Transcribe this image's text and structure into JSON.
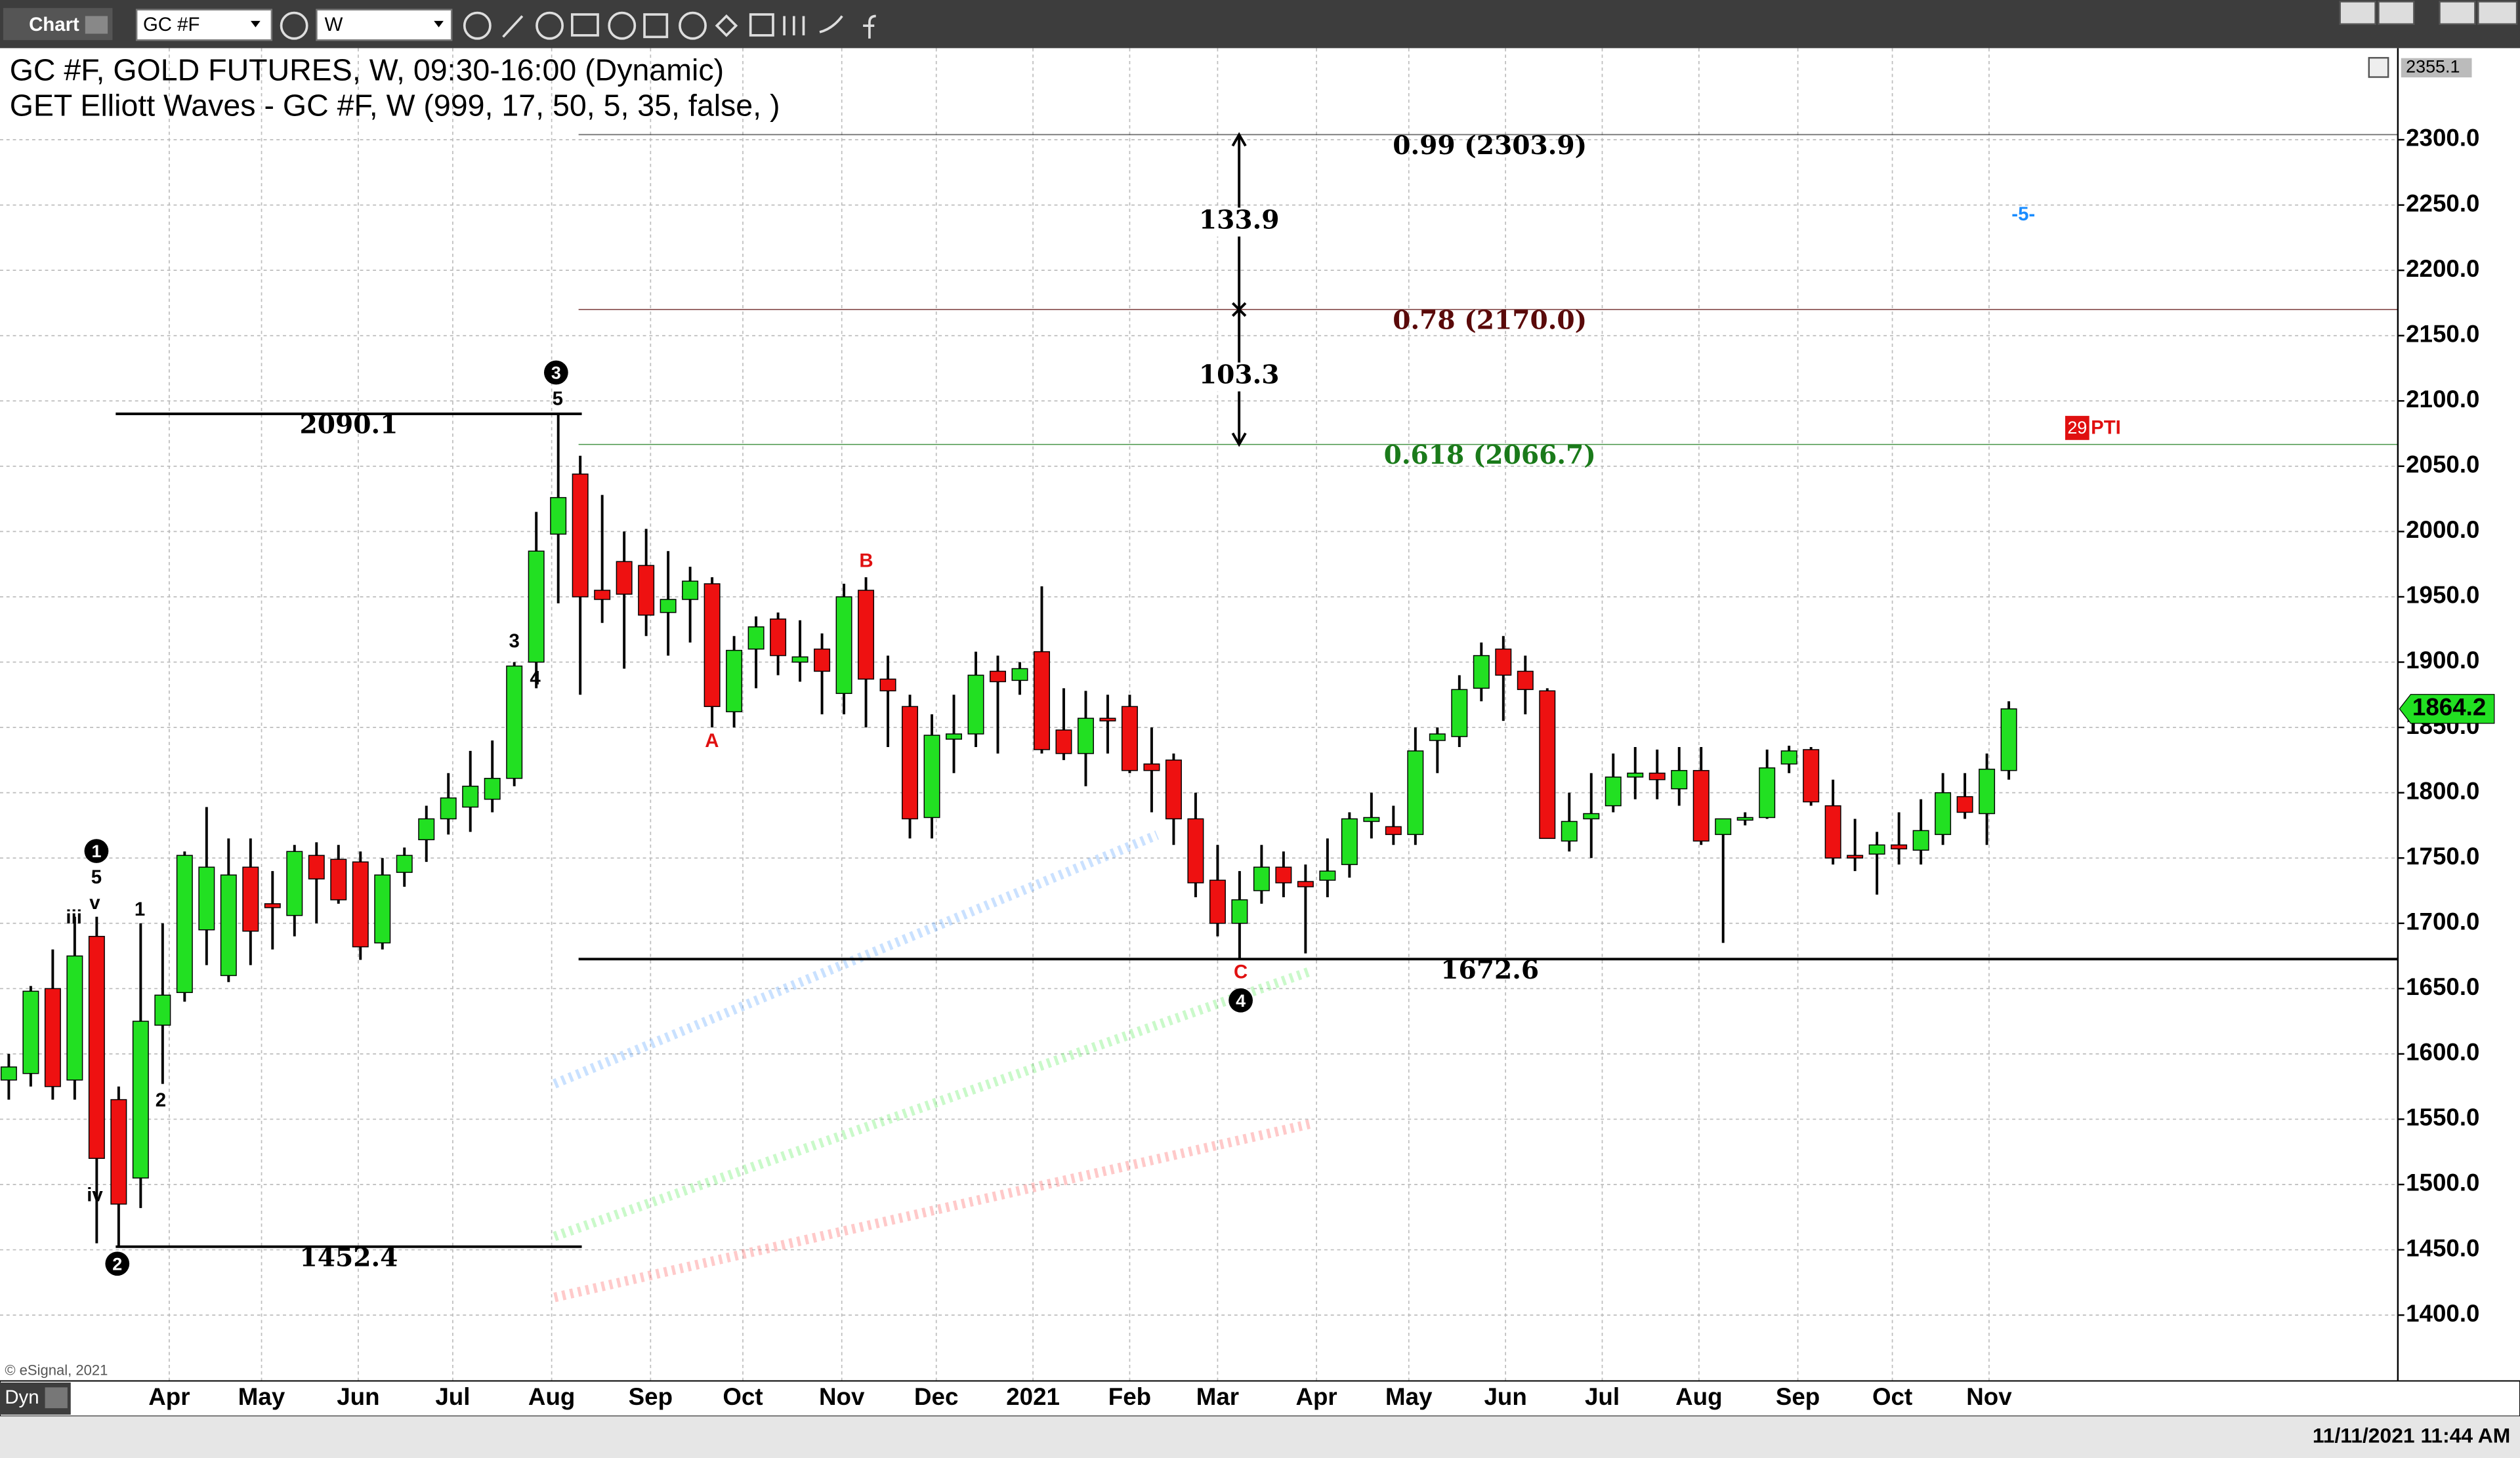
{
  "toolbar": {
    "app": "Chart",
    "symbol": "GC #F",
    "interval": "W"
  },
  "header": {
    "line1": "GC #F, GOLD FUTURES, W, 09:30-16:00 (Dynamic)",
    "line2": "GET Elliott Waves - GC #F, W (999, 17, 50, 5, 35, false, )"
  },
  "footer": {
    "copyright": "© eSignal, 2021",
    "mode": "Dyn",
    "timestamp": "11/11/2021 11:44 AM"
  },
  "chart_data": {
    "type": "candlestick",
    "up_color": "#22e022",
    "down_color": "#ee1111",
    "open": [
      1580,
      1585,
      1650,
      1580,
      1690,
      1565,
      1505,
      1622,
      1647,
      1695,
      1660,
      1743,
      1715,
      1706,
      1752,
      1749,
      1747,
      1685,
      1739,
      1764,
      1780,
      1789,
      1795,
      1811,
      1900,
      1998,
      2044,
      1955,
      1977,
      1974,
      1938,
      1948,
      1960,
      1862,
      1910,
      1933,
      1900,
      1910,
      1876,
      1955,
      1887,
      1866,
      1781,
      1841,
      1845,
      1893,
      1886,
      1908,
      1848,
      1830,
      1857,
      1866,
      1822,
      1825,
      1780,
      1733,
      1700,
      1725,
      1743,
      1732,
      1733,
      1745,
      1778,
      1774,
      1768,
      1840,
      1843,
      1880,
      1910,
      1893,
      1878,
      1763,
      1780,
      1790,
      1812,
      1815,
      1803,
      1817,
      1768,
      1779,
      1781,
      1822,
      1833,
      1790,
      1752,
      1753,
      1760,
      1756,
      1768,
      1797,
      1784,
      1817
    ],
    "high": [
      1600,
      1652,
      1680,
      1705,
      1705,
      1575,
      1700,
      1700,
      1755,
      1789,
      1765,
      1765,
      1740,
      1760,
      1762,
      1760,
      1755,
      1750,
      1758,
      1790,
      1815,
      1832,
      1840,
      1900,
      2015,
      2090.1,
      2058,
      2028,
      2000,
      2002,
      1985,
      1973,
      1965,
      1920,
      1935,
      1938,
      1932,
      1922,
      1960,
      1965,
      1905,
      1875,
      1860,
      1875,
      1908,
      1905,
      1900,
      1958,
      1880,
      1878,
      1875,
      1875,
      1850,
      1830,
      1800,
      1760,
      1740,
      1760,
      1755,
      1745,
      1765,
      1785,
      1800,
      1790,
      1850,
      1850,
      1890,
      1915,
      1920,
      1905,
      1880,
      1800,
      1815,
      1830,
      1835,
      1833,
      1835,
      1835,
      1780,
      1785,
      1833,
      1836,
      1835,
      1810,
      1780,
      1770,
      1785,
      1795,
      1815,
      1815,
      1830,
      1870
    ],
    "low": [
      1565,
      1575,
      1565,
      1565,
      1455,
      1452.4,
      1482,
      1577,
      1640,
      1668,
      1655,
      1668,
      1680,
      1690,
      1700,
      1715,
      1672,
      1680,
      1728,
      1747,
      1768,
      1770,
      1785,
      1805,
      1880,
      1945,
      1875,
      1930,
      1895,
      1920,
      1905,
      1915,
      1850,
      1850,
      1880,
      1890,
      1885,
      1860,
      1860,
      1850,
      1835,
      1765,
      1765,
      1815,
      1835,
      1830,
      1875,
      1830,
      1825,
      1805,
      1830,
      1815,
      1785,
      1760,
      1720,
      1690,
      1672.6,
      1715,
      1720,
      1677,
      1720,
      1735,
      1765,
      1760,
      1760,
      1815,
      1835,
      1870,
      1855,
      1860,
      1765,
      1755,
      1750,
      1785,
      1795,
      1795,
      1790,
      1760,
      1685,
      1775,
      1780,
      1815,
      1790,
      1745,
      1740,
      1722,
      1745,
      1745,
      1760,
      1780,
      1760,
      1810
    ],
    "close": [
      1590,
      1648,
      1575,
      1675,
      1520,
      1485,
      1625,
      1645,
      1752,
      1743,
      1737,
      1694,
      1712,
      1755,
      1734,
      1718,
      1682,
      1737,
      1752,
      1780,
      1796,
      1805,
      1811,
      1897,
      1985,
      2026,
      1950,
      1948,
      1952,
      1936,
      1948,
      1962,
      1866,
      1909,
      1927,
      1905,
      1904,
      1893,
      1950,
      1887,
      1878,
      1780,
      1844,
      1845,
      1890,
      1885,
      1895,
      1833,
      1830,
      1857,
      1855,
      1817,
      1817,
      1780,
      1731,
      1700,
      1718,
      1743,
      1731,
      1728,
      1740,
      1780,
      1781,
      1768,
      1832,
      1845,
      1879,
      1905,
      1890,
      1879,
      1765,
      1778,
      1784,
      1812,
      1815,
      1810,
      1817,
      1763,
      1780,
      1781,
      1819,
      1832,
      1793,
      1750,
      1750,
      1760,
      1757,
      1771,
      1800,
      1785,
      1818,
      1864.2
    ],
    "xlim": [
      -0.4,
      108.7
    ],
    "xticks": [
      {
        "value": 7.3,
        "label": "Apr"
      },
      {
        "value": 11.5,
        "label": "May"
      },
      {
        "value": 15.9,
        "label": "Jun"
      },
      {
        "value": 20.2,
        "label": "Jul"
      },
      {
        "value": 24.7,
        "label": "Aug"
      },
      {
        "value": 29.2,
        "label": "Sep"
      },
      {
        "value": 33.4,
        "label": "Oct"
      },
      {
        "value": 37.9,
        "label": "Nov"
      },
      {
        "value": 42.2,
        "label": "Dec"
      },
      {
        "value": 46.6,
        "label": "2021"
      },
      {
        "value": 51.0,
        "label": "Feb"
      },
      {
        "value": 55.0,
        "label": "Mar"
      },
      {
        "value": 59.5,
        "label": "Apr"
      },
      {
        "value": 63.7,
        "label": "May"
      },
      {
        "value": 68.1,
        "label": "Jun"
      },
      {
        "value": 72.5,
        "label": "Jul"
      },
      {
        "value": 76.9,
        "label": "Aug"
      },
      {
        "value": 81.4,
        "label": "Sep"
      },
      {
        "value": 85.7,
        "label": "Oct"
      },
      {
        "value": 90.1,
        "label": "Nov"
      }
    ],
    "ylim": [
      1349.6,
      2361.5
    ],
    "yticks": [
      {
        "value": 1400,
        "label": "1400.0"
      },
      {
        "value": 1450,
        "label": "1450.0"
      },
      {
        "value": 1500,
        "label": "1500.0"
      },
      {
        "value": 1550,
        "label": "1550.0"
      },
      {
        "value": 1600,
        "label": "1600.0"
      },
      {
        "value": 1650,
        "label": "1650.0"
      },
      {
        "value": 1700,
        "label": "1700.0"
      },
      {
        "value": 1750,
        "label": "1750.0"
      },
      {
        "value": 1800,
        "label": "1800.0"
      },
      {
        "value": 1850,
        "label": "1850.0"
      },
      {
        "value": 1900,
        "label": "1900.0"
      },
      {
        "value": 1950,
        "label": "1950.0"
      },
      {
        "value": 2000,
        "label": "2000.0"
      },
      {
        "value": 2050,
        "label": "2050.0"
      },
      {
        "value": 2100,
        "label": "2100.0"
      },
      {
        "value": 2150,
        "label": "2150.0"
      },
      {
        "value": 2200,
        "label": "2200.0"
      },
      {
        "value": 2250,
        "label": "2250.0"
      },
      {
        "value": 2300,
        "label": "2300.0"
      }
    ],
    "grid": true,
    "levels": [
      2090.1,
      1452.4,
      1672.6
    ],
    "fib_levels": [
      {
        "label": "0.99 (2303.9)",
        "value": 2303.9,
        "color": "#000000"
      },
      {
        "label": "0.78 (2170.0)",
        "value": 2170.0,
        "color": "#5a0a0a"
      },
      {
        "label": "0.618 (2066.7)",
        "value": 2066.7,
        "color": "#1a7a1a"
      }
    ],
    "measures": [
      133.9,
      103.3
    ],
    "price_tag": 1864.2,
    "top_tag": 2355.1,
    "wave_labels": [
      {
        "text": "1",
        "circled": true,
        "color": "#000000"
      },
      {
        "text": "5",
        "color": "#000000"
      },
      {
        "text": "v",
        "color": "#000000"
      },
      {
        "text": "iii",
        "color": "#000000"
      },
      {
        "text": "iv",
        "color": "#000000"
      },
      {
        "text": "2",
        "circled": true,
        "color": "#000000"
      },
      {
        "text": "1",
        "color": "#000000"
      },
      {
        "text": "2",
        "color": "#000000"
      },
      {
        "text": "3",
        "color": "#000000"
      },
      {
        "text": "4",
        "color": "#000000"
      },
      {
        "text": "3",
        "circled": true,
        "color": "#000000"
      },
      {
        "text": "5",
        "color": "#000000"
      },
      {
        "text": "A",
        "color": "#e01010"
      },
      {
        "text": "B",
        "color": "#e01010"
      },
      {
        "text": "C",
        "color": "#e01010"
      },
      {
        "text": "4",
        "circled": true,
        "color": "#000000"
      },
      {
        "text": "-5-",
        "color": "#1a8cff"
      }
    ],
    "pti": {
      "count": "29",
      "text": "PTI",
      "color": "#e01010"
    }
  }
}
